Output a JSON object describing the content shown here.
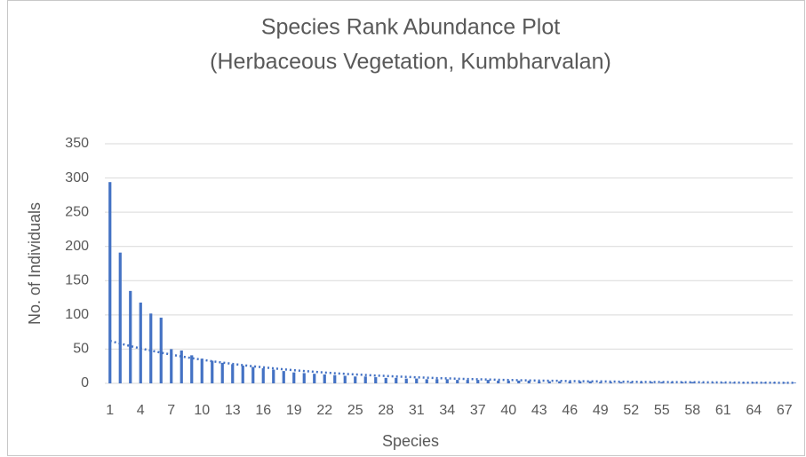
{
  "chart_data": {
    "type": "bar",
    "title": "Species Rank Abundance Plot",
    "subtitle": "(Herbaceous Vegetation, Kumbharvalan)",
    "x_label": "Species",
    "y_label": "No. of Individuals",
    "categories": [
      1,
      null,
      null,
      4,
      null,
      null,
      7,
      null,
      null,
      10,
      null,
      null,
      13,
      null,
      null,
      16,
      null,
      null,
      19,
      null,
      null,
      22,
      null,
      null,
      25,
      null,
      null,
      28,
      null,
      null,
      31,
      null,
      null,
      34,
      null,
      null,
      37,
      null,
      null,
      40,
      null,
      null,
      43,
      null,
      null,
      46,
      null,
      null,
      49,
      null,
      null,
      52,
      null,
      null,
      55,
      null,
      null,
      58,
      null,
      null,
      61,
      null,
      null,
      64,
      null,
      null,
      67,
      null
    ],
    "values": [
      294,
      191,
      135,
      118,
      102,
      96,
      50,
      48,
      41,
      36,
      33,
      30,
      28,
      26,
      24,
      22,
      20,
      18,
      16,
      15,
      14,
      13,
      12,
      11,
      10,
      10,
      9,
      8,
      8,
      7,
      7,
      6,
      6,
      6,
      5,
      5,
      5,
      5,
      4,
      4,
      4,
      4,
      3,
      3,
      3,
      3,
      3,
      3,
      2,
      2,
      2,
      2,
      2,
      2,
      2,
      2,
      2,
      2,
      1,
      1,
      1,
      1,
      1,
      1,
      1,
      1,
      1,
      1
    ],
    "color": "#4472c4",
    "trendline": {
      "color": "#4472c4",
      "style": "dotted",
      "values": [
        62,
        58.1,
        54.4,
        51,
        47.8,
        44.8,
        42,
        39.3,
        36.8,
        34.5,
        32.3,
        30.3,
        28.4,
        26.6,
        24.9,
        23.4,
        21.9,
        20.5,
        19.2,
        18,
        16.9,
        15.8,
        14.8,
        13.9,
        13,
        12.2,
        11.4,
        10.7,
        10,
        9.4,
        8.8,
        8.3,
        7.7,
        7.3,
        6.8,
        6.4,
        6,
        5.6,
        5.2,
        4.9,
        4.6,
        4.3,
        4,
        3.8,
        3.6,
        3.3,
        3.1,
        2.9,
        2.8,
        2.6,
        2.4,
        2.3,
        2.1,
        2,
        1.9,
        1.8,
        1.7,
        1.6,
        1.5,
        1.4,
        1.3,
        1.2,
        1.1,
        1,
        1,
        0.9,
        0.8,
        0.8
      ]
    },
    "ylim": [
      0,
      350
    ],
    "yticks": [
      0,
      50,
      100,
      150,
      200,
      250,
      300,
      350
    ],
    "grid": true
  }
}
